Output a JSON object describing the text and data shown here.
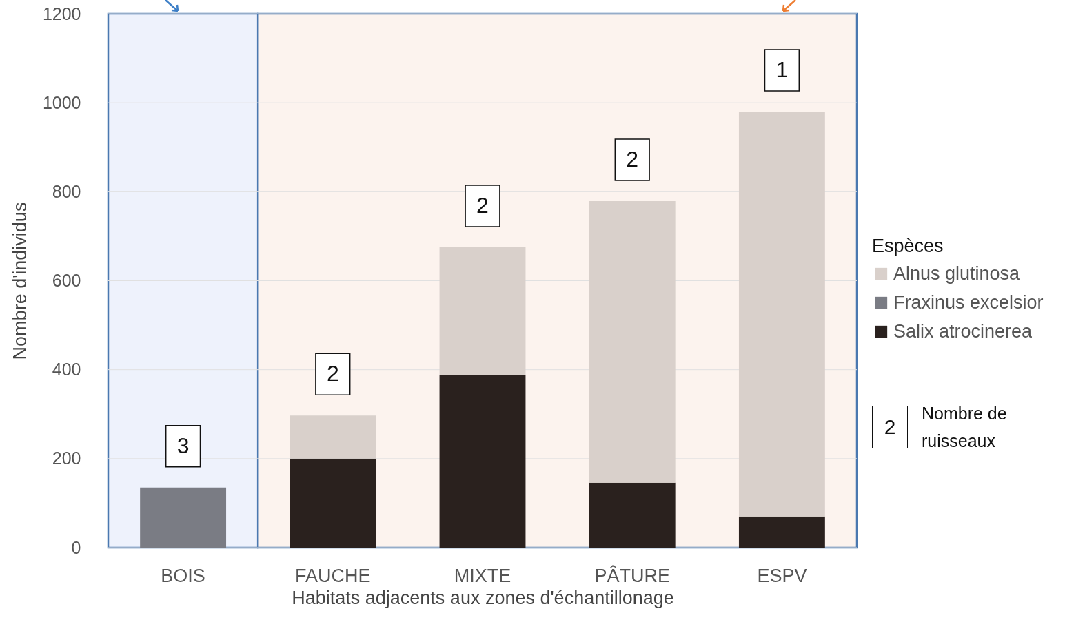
{
  "chart_data": {
    "type": "bar",
    "stacked": true,
    "xlabel": "Habitats adjacents aux zones d'échantillonage",
    "ylabel": "Nombre d'individus",
    "legend_title": "Espèces",
    "legend": "right",
    "categories": [
      "BOIS",
      "FAUCHE",
      "MIXTE",
      "PÂTURE",
      "ESPV"
    ],
    "series": [
      {
        "name": "Salix atrocinerea",
        "color": "#2a211e",
        "values": [
          null,
          200,
          387,
          146,
          70
        ]
      },
      {
        "name": "Fraxinus excelsior",
        "color": "#7a7c84",
        "values": [
          135,
          null,
          null,
          null,
          null
        ]
      },
      {
        "name": "Alnus glutinosa",
        "color": "#d9d0cb",
        "values": [
          null,
          97,
          288,
          633,
          910
        ]
      }
    ],
    "ylim": [
      0,
      1200
    ],
    "yticks": [
      0,
      200,
      400,
      600,
      800,
      {
        "value": 1000,
        "label": "1000"
      },
      {
        "value": 1200,
        "label": "1200"
      }
    ],
    "grid": "y",
    "bands": [
      {
        "axis": "x",
        "from": "BOIS",
        "to": "BOIS",
        "color": "#eef2fc"
      },
      {
        "axis": "x",
        "from": "FAUCHE",
        "to": "ESPV",
        "color": "#fcf3ee"
      }
    ],
    "annotations": [
      {
        "text": "3",
        "x": "BOIS",
        "y": 135
      },
      {
        "text": "2",
        "x": "FAUCHE",
        "y": 297
      },
      {
        "text": "2",
        "x": "MIXTE",
        "y": 675
      },
      {
        "text": "2",
        "x": "PÂTURE",
        "y": 779
      },
      {
        "text": "1",
        "x": "ESPV",
        "y": 980
      },
      "2 Nombre de ruisseaux"
    ]
  }
}
